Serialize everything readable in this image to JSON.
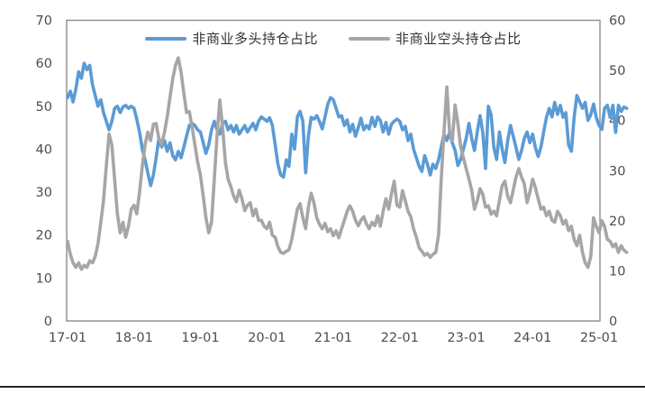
{
  "chart": {
    "legend": [
      {
        "label": "非商业多头持仓占比",
        "color": "#5B9BD5"
      },
      {
        "label": "非商业空头持仓占比",
        "color": "#A6A6A6"
      }
    ],
    "border_color": "#8C8C8C",
    "tick_color": "#4d4d4d",
    "divider_color": "#262626"
  },
  "chart_data": {
    "type": "line",
    "title": "",
    "xlabel": "",
    "ylabel_left": "",
    "ylabel_right": "",
    "grid": false,
    "legend_position": "top-center",
    "x_axis": {
      "labels": [
        "17-01",
        "18-01",
        "19-01",
        "20-01",
        "21-01",
        "22-01",
        "23-01",
        "24-01",
        "25-01"
      ]
    },
    "y_axis_left": {
      "min": 0,
      "max": 70,
      "ticks": [
        0,
        10,
        20,
        30,
        40,
        50,
        60,
        70
      ]
    },
    "y_axis_right": {
      "min": 0,
      "max": 60,
      "ticks": [
        0,
        10,
        20,
        30,
        40,
        50,
        60
      ]
    },
    "x_start": 2017.0,
    "x_step": 0.0416667,
    "series": [
      {
        "name": "非商业多头持仓占比",
        "axis": "left",
        "color": "#5B9BD5",
        "values": [
          52,
          53.5,
          51,
          54,
          58,
          56.5,
          60,
          58.5,
          59.5,
          55,
          52.5,
          50,
          51.5,
          48.5,
          46.5,
          44.5,
          46.5,
          49.5,
          50,
          48.5,
          49.8,
          50.2,
          49.5,
          50,
          49.5,
          47,
          44,
          40,
          37.5,
          34.5,
          31.5,
          34,
          38,
          42.5,
          40.5,
          42,
          39.5,
          41.5,
          38.5,
          37.5,
          39.5,
          38,
          40.5,
          43,
          45.5,
          46,
          45.5,
          44.5,
          44,
          41.5,
          39,
          41,
          44.5,
          46.5,
          44.5,
          43.5,
          46,
          46.5,
          44.5,
          45.5,
          44,
          45.5,
          43.5,
          44.5,
          45.5,
          44,
          45,
          46,
          44.5,
          46.5,
          47.5,
          47,
          46.5,
          47.3,
          45.5,
          41,
          36.5,
          34,
          33.5,
          37.5,
          36,
          43.5,
          40,
          47.5,
          48.8,
          46.5,
          34.5,
          43,
          47.4,
          47,
          47.8,
          46.5,
          44.7,
          47.5,
          50.5,
          52,
          51.5,
          49.5,
          47.5,
          47.8,
          45.5,
          46.8,
          44,
          45.8,
          43,
          45,
          47.2,
          44.5,
          45.5,
          44.7,
          47.4,
          45.3,
          47.5,
          46.7,
          44,
          46.2,
          43.5,
          45.8,
          46.5,
          47,
          46.5,
          44.5,
          45.3,
          42,
          43.5,
          40,
          38,
          36,
          34.8,
          38.5,
          36.5,
          34,
          36.5,
          35.5,
          37.5,
          40.5,
          43.5,
          42,
          43.9,
          41.5,
          39.7,
          36.2,
          37.6,
          40,
          42.5,
          46,
          42.5,
          39.7,
          44,
          47.8,
          44,
          35.5,
          50,
          48,
          40.4,
          37.6,
          44,
          40,
          36.9,
          42,
          45.5,
          43,
          40.4,
          37.6,
          39.7,
          42.5,
          44,
          41.5,
          43.5,
          40.4,
          38.3,
          40.5,
          44,
          47.4,
          49.5,
          47.5,
          50.9,
          48.1,
          50.2,
          47.4,
          48.5,
          41,
          39.5,
          47.4,
          52.5,
          51,
          49.5,
          50.9,
          46.7,
          48,
          50.5,
          47.4,
          45.5,
          44.6,
          49.5,
          50.2,
          47.4,
          50.2,
          43.9,
          50.2,
          48.8,
          49.8,
          49.5
        ]
      },
      {
        "name": "非商业空头持仓占比",
        "axis": "right",
        "color": "#A6A6A6",
        "values": [
          15.9,
          13.3,
          11.6,
          10.7,
          11.6,
          10.3,
          11.1,
          10.7,
          12,
          11.6,
          12.9,
          15.4,
          19.7,
          24,
          30.9,
          37.3,
          35.1,
          28.3,
          21.4,
          17.6,
          19.7,
          16.7,
          18.9,
          22.3,
          23.1,
          21.4,
          25.7,
          30.9,
          35.1,
          37.7,
          36,
          39.3,
          39.4,
          36.4,
          35.3,
          37.7,
          40.7,
          44.6,
          48.4,
          51,
          52.5,
          49.7,
          45.4,
          41.6,
          41.8,
          38.6,
          35.1,
          31.7,
          29.1,
          24.9,
          20.6,
          17.6,
          19.7,
          28.3,
          36.9,
          44.1,
          38.6,
          31.7,
          28.3,
          26.8,
          24.9,
          23.8,
          26.1,
          24.4,
          22,
          23.1,
          23.6,
          21,
          22.3,
          20.1,
          20.1,
          18.9,
          18.4,
          19.7,
          17.1,
          16.7,
          14.8,
          13.7,
          13.5,
          13.9,
          14.2,
          16.3,
          19.3,
          22.3,
          23.4,
          20.6,
          18.4,
          22.7,
          25.5,
          23.6,
          20.6,
          19.3,
          18.4,
          19.5,
          17.8,
          18.4,
          17,
          18,
          16.6,
          18.4,
          20.1,
          21.9,
          23,
          21.9,
          20.1,
          19,
          20.1,
          20.8,
          19.3,
          18.4,
          19.7,
          19,
          21,
          18.9,
          21.9,
          24.4,
          22.3,
          25.3,
          27.9,
          23.1,
          22.7,
          26,
          24,
          21.9,
          20.8,
          18.4,
          16.7,
          14.6,
          13.9,
          13.1,
          13.5,
          12.7,
          13.3,
          13.7,
          17.1,
          28.3,
          37.7,
          46.7,
          37.7,
          36,
          43.1,
          39.4,
          34.7,
          32.6,
          30.4,
          28.3,
          26.1,
          22.3,
          24,
          26.4,
          25.3,
          22.7,
          23,
          21.3,
          21.9,
          21,
          24,
          27,
          27.9,
          24.9,
          23.6,
          26.1,
          28.7,
          30.4,
          28.7,
          27.4,
          23.6,
          25.7,
          28.3,
          26.6,
          24.4,
          22.3,
          22.7,
          21,
          21.9,
          20.1,
          19.7,
          21.9,
          21,
          19.3,
          20.1,
          18,
          18.9,
          16.3,
          15,
          17.1,
          13.7,
          11.6,
          10.7,
          12.9,
          20.6,
          18.9,
          17.6,
          20,
          18.9,
          16.3,
          15.9,
          14.8,
          15.4,
          13.7,
          15,
          14.1,
          13.7
        ]
      }
    ]
  }
}
